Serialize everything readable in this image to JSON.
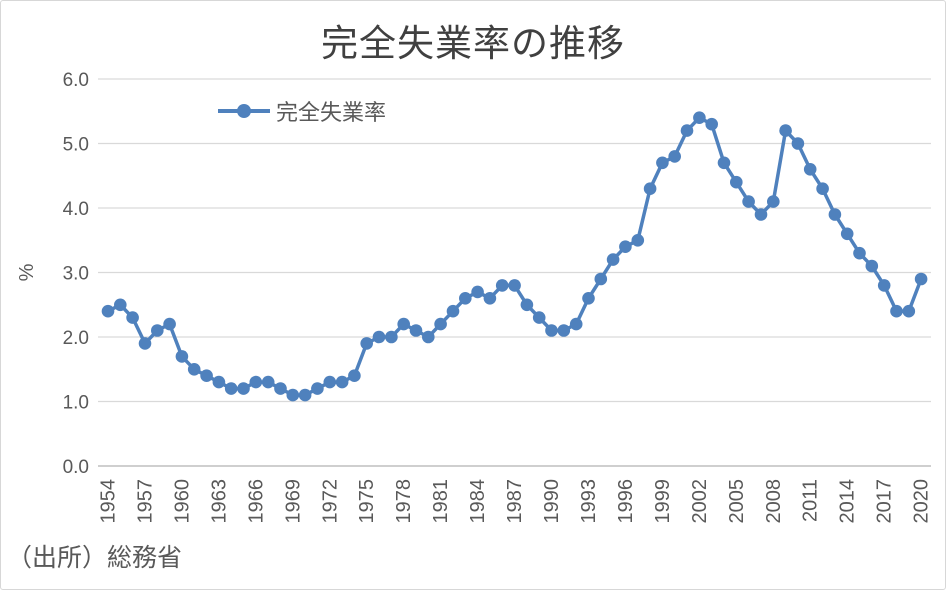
{
  "chart_data": {
    "type": "line",
    "title": "完全失業率の推移",
    "ylabel": "%",
    "source_note": "（出所）総務省",
    "legend_position": "top-left-inside",
    "grid": true,
    "ylim": [
      0.0,
      6.0
    ],
    "y_tick_labels": [
      "0.0",
      "1.0",
      "2.0",
      "3.0",
      "4.0",
      "5.0",
      "6.0"
    ],
    "x_tick_labels": [
      "1954",
      "1957",
      "1960",
      "1963",
      "1966",
      "1969",
      "1972",
      "1975",
      "1978",
      "1981",
      "1984",
      "1987",
      "1990",
      "1993",
      "1996",
      "1999",
      "2002",
      "2005",
      "2008",
      "2011",
      "2014",
      "2017",
      "2020"
    ],
    "categories": [
      1954,
      1955,
      1956,
      1957,
      1958,
      1959,
      1960,
      1961,
      1962,
      1963,
      1964,
      1965,
      1966,
      1967,
      1968,
      1969,
      1970,
      1971,
      1972,
      1973,
      1974,
      1975,
      1976,
      1977,
      1978,
      1979,
      1980,
      1981,
      1982,
      1983,
      1984,
      1985,
      1986,
      1987,
      1988,
      1989,
      1990,
      1991,
      1992,
      1993,
      1994,
      1995,
      1996,
      1997,
      1998,
      1999,
      2000,
      2001,
      2002,
      2003,
      2004,
      2005,
      2006,
      2007,
      2008,
      2009,
      2010,
      2011,
      2012,
      2013,
      2014,
      2015,
      2016,
      2017,
      2018,
      2019,
      2020
    ],
    "series": [
      {
        "name": "完全失業率",
        "color": "#4f81bd",
        "marker": "circle",
        "values": [
          2.4,
          2.5,
          2.3,
          1.9,
          2.1,
          2.2,
          1.7,
          1.5,
          1.4,
          1.3,
          1.2,
          1.2,
          1.3,
          1.3,
          1.2,
          1.1,
          1.1,
          1.2,
          1.3,
          1.3,
          1.4,
          1.9,
          2.0,
          2.0,
          2.2,
          2.1,
          2.0,
          2.2,
          2.4,
          2.6,
          2.7,
          2.6,
          2.8,
          2.8,
          2.5,
          2.3,
          2.1,
          2.1,
          2.2,
          2.6,
          2.9,
          3.2,
          3.4,
          3.5,
          4.3,
          4.7,
          4.8,
          5.2,
          5.4,
          5.3,
          4.7,
          4.4,
          4.1,
          3.9,
          4.1,
          5.2,
          5.0,
          4.6,
          4.3,
          3.9,
          3.6,
          3.3,
          3.1,
          2.8,
          2.4,
          2.4,
          2.9
        ]
      }
    ],
    "colors": {
      "title_text": "#404040",
      "axis_text": "#595959",
      "gridline": "#d9d9d9",
      "axis_line": "#bfbfbf"
    }
  }
}
